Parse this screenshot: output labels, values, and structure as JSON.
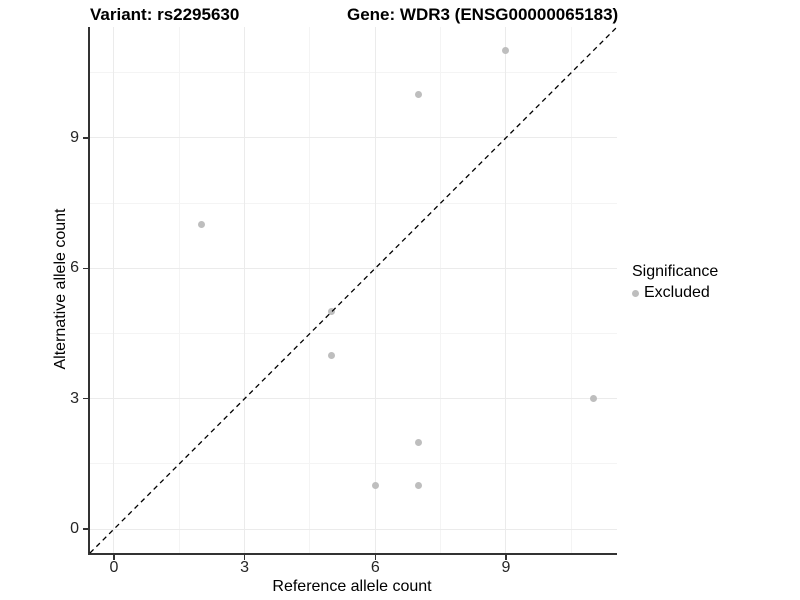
{
  "titles": {
    "variant": "Variant: rs2295630",
    "gene": "Gene: WDR3 (ENSG00000065183)"
  },
  "chart_data": {
    "type": "scatter",
    "title": "Variant: rs2295630   Gene: WDR3 (ENSG00000065183)",
    "xlabel": "Reference allele count",
    "ylabel": "Alternative allele count",
    "xlim": [
      -0.55,
      11.55
    ],
    "ylim": [
      -0.55,
      11.55
    ],
    "x_major_ticks": [
      0,
      3,
      6,
      9
    ],
    "y_major_ticks": [
      0,
      3,
      6,
      9
    ],
    "x_minor_gridlines": [
      1.5,
      4.5,
      7.5,
      10.5
    ],
    "y_minor_gridlines": [
      1.5,
      4.5,
      7.5,
      10.5
    ],
    "grid": true,
    "series": [
      {
        "name": "Excluded",
        "color": "#bebebe",
        "points": [
          [
            2,
            7
          ],
          [
            5,
            4
          ],
          [
            5,
            5
          ],
          [
            6,
            1
          ],
          [
            7,
            1
          ],
          [
            7,
            2
          ],
          [
            7,
            10
          ],
          [
            9,
            11
          ],
          [
            11,
            3
          ]
        ]
      }
    ],
    "identity_line": {
      "type": "dashed",
      "color": "#000000",
      "from": [
        -0.55,
        -0.55
      ],
      "to": [
        11.55,
        11.55
      ]
    },
    "legend": {
      "title": "Significance",
      "position": "right",
      "entries": [
        {
          "label": "Excluded",
          "color": "#bebebe"
        }
      ]
    }
  },
  "colors": {
    "background": "#ffffff",
    "grid_major": "#ebebeb",
    "grid_minor": "#f4f4f4",
    "axis_line": "#333333",
    "tick_label": "#262626",
    "point": "#bebebe",
    "identity_line": "#000000"
  }
}
